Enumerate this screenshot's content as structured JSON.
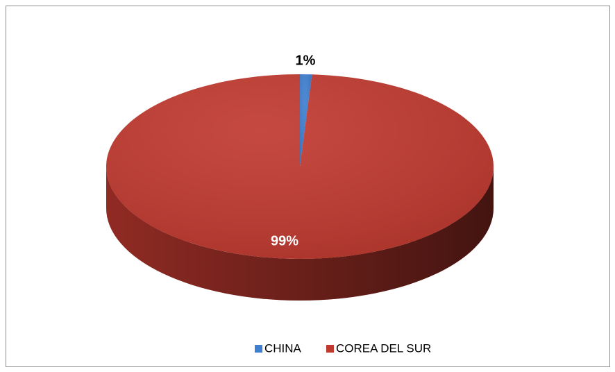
{
  "chart_data": {
    "type": "pie",
    "style": "3d",
    "categories": [
      "CHINA",
      "COREA DEL SUR"
    ],
    "values": [
      1,
      99
    ],
    "value_labels": [
      "1%",
      "99%"
    ],
    "colors": [
      "#3f7fd0",
      "#c0392f"
    ],
    "legend": "bottom"
  }
}
